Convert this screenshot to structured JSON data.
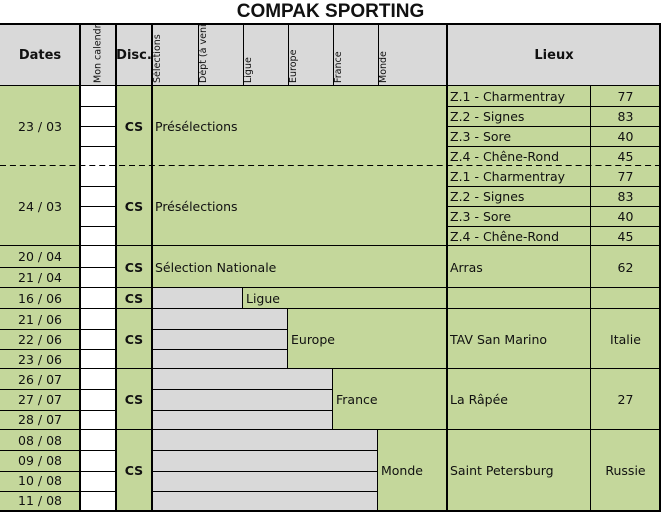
{
  "title": "COMPAK SPORTING",
  "header": {
    "dates": "Dates",
    "calendar": "Mon calendrier",
    "disc": "Disc.",
    "levels": [
      "Sélections",
      "Dépt (à venir)",
      "Ligue",
      "Europe",
      "France",
      "Monde"
    ],
    "lieux": "Lieux"
  },
  "colors": {
    "green": "#c4d79b",
    "grey": "#d9d9d9",
    "border": "#000000"
  },
  "events": [
    {
      "dates": [
        "23 / 03"
      ],
      "rows": 4,
      "disc": "CS",
      "label": "Présélections",
      "level": "Sélections",
      "venues": [
        {
          "name": "Z.1 - Charmentray",
          "code": "77"
        },
        {
          "name": "Z.2 - Signes",
          "code": "83"
        },
        {
          "name": "Z.3 - Sore",
          "code": "40"
        },
        {
          "name": "Z.4 - Chêne-Rond",
          "code": "45"
        }
      ]
    },
    {
      "dates": [
        "24 / 03"
      ],
      "rows": 4,
      "disc": "CS",
      "label": "Présélections",
      "level": "Sélections",
      "venues": [
        {
          "name": "Z.1 - Charmentray",
          "code": "77"
        },
        {
          "name": "Z.2 - Signes",
          "code": "83"
        },
        {
          "name": "Z.3 - Sore",
          "code": "40"
        },
        {
          "name": "Z.4 - Chêne-Rond",
          "code": "45"
        }
      ]
    },
    {
      "dates": [
        "20 / 04",
        "21 / 04"
      ],
      "rows": 2,
      "disc": "CS",
      "label": "Sélection Nationale",
      "level": "Sélections",
      "venues": [
        {
          "name": "Arras",
          "code": "62"
        }
      ]
    },
    {
      "dates": [
        "16 / 06"
      ],
      "rows": 1,
      "disc": "CS",
      "label": "Ligue",
      "level": "Ligue",
      "venues": [
        {
          "name": "",
          "code": ""
        }
      ]
    },
    {
      "dates": [
        "21 / 06",
        "22 / 06",
        "23 / 06"
      ],
      "rows": 3,
      "disc": "CS",
      "label": "Europe",
      "level": "Europe",
      "venues": [
        {
          "name": "TAV San Marino",
          "code": "Italie"
        }
      ]
    },
    {
      "dates": [
        "26 / 07",
        "27 / 07",
        "28 / 07"
      ],
      "rows": 3,
      "disc": "CS",
      "label": "France",
      "level": "France",
      "venues": [
        {
          "name": "La Râpée",
          "code": "27"
        }
      ]
    },
    {
      "dates": [
        "08 / 08",
        "09 / 08",
        "10 / 08",
        "11 / 08"
      ],
      "rows": 4,
      "disc": "CS",
      "label": "Monde",
      "level": "Monde",
      "venues": [
        {
          "name": "Saint Petersburg",
          "code": "Russie"
        }
      ]
    }
  ]
}
